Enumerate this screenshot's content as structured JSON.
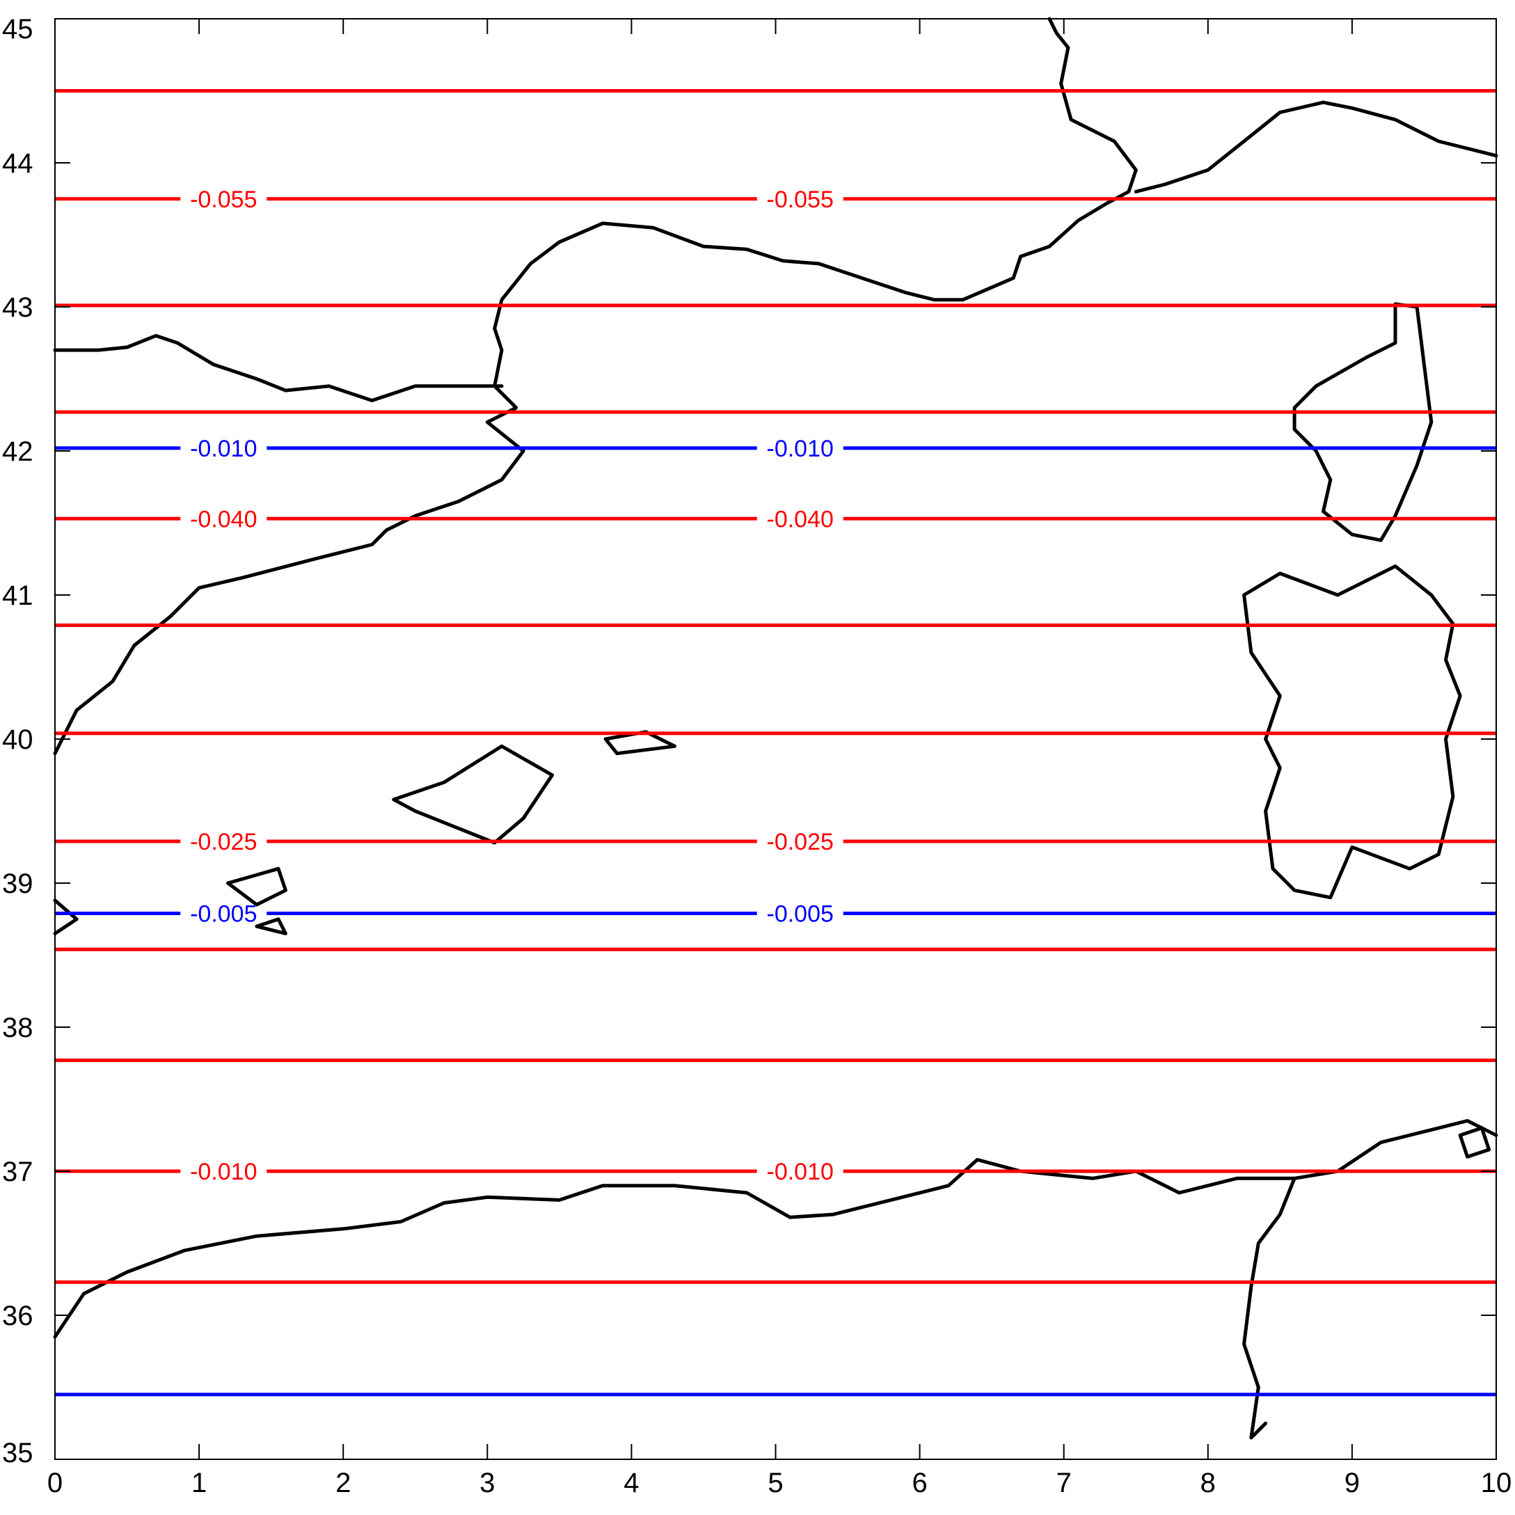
{
  "chart_data": {
    "type": "contour-map",
    "xlim": [
      0,
      10
    ],
    "ylim": [
      35,
      45
    ],
    "x_ticks": [
      "0",
      "1",
      "2",
      "3",
      "4",
      "5",
      "6",
      "7",
      "8",
      "9",
      "10"
    ],
    "y_ticks": [
      "35",
      "36",
      "37",
      "38",
      "39",
      "40",
      "41",
      "42",
      "43",
      "44",
      "45"
    ],
    "colors": {
      "positive": "#ff0000",
      "negative": "#0000ff",
      "coast": "#000000",
      "frame": "#000000"
    },
    "contours": [
      {
        "y": 44.5,
        "color": "red",
        "label": ""
      },
      {
        "y": 43.75,
        "color": "red",
        "label": "-0.055"
      },
      {
        "y": 43.01,
        "color": "red",
        "label": ""
      },
      {
        "y": 42.27,
        "color": "red",
        "label": ""
      },
      {
        "y": 42.02,
        "color": "blue",
        "label": "-0.010"
      },
      {
        "y": 41.53,
        "color": "red",
        "label": "-0.040"
      },
      {
        "y": 40.79,
        "color": "red",
        "label": ""
      },
      {
        "y": 40.04,
        "color": "red",
        "label": ""
      },
      {
        "y": 39.29,
        "color": "red",
        "label": "-0.025"
      },
      {
        "y": 38.79,
        "color": "blue",
        "label": "-0.005"
      },
      {
        "y": 38.54,
        "color": "red",
        "label": ""
      },
      {
        "y": 37.77,
        "color": "red",
        "label": ""
      },
      {
        "y": 37.0,
        "color": "red",
        "label": "-0.010"
      },
      {
        "y": 36.23,
        "color": "red",
        "label": ""
      },
      {
        "y": 35.45,
        "color": "blue",
        "label": ""
      }
    ],
    "label_x": [
      1.17,
      5.17
    ]
  }
}
